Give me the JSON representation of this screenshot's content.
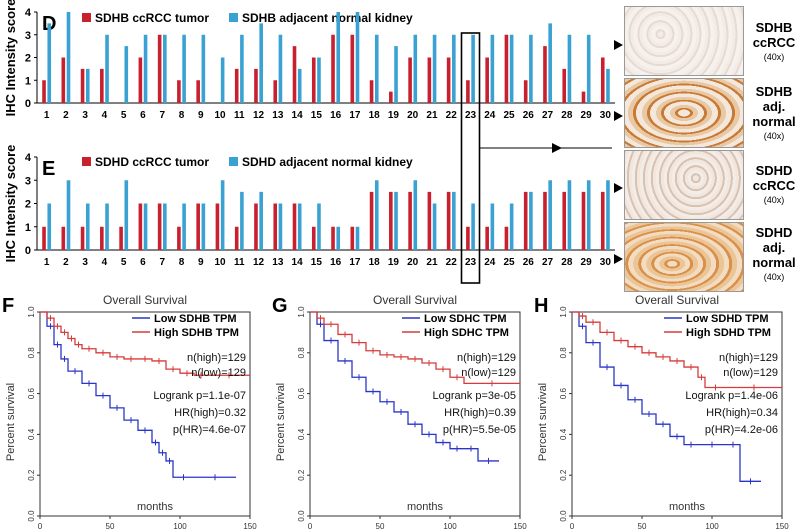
{
  "bar_panels": [
    {
      "letter": "D",
      "legend": [
        "SDHB ccRCC tumor",
        "SDHB adjacent normal kidney"
      ],
      "colors": [
        "#c8202e",
        "#3aa2d2"
      ],
      "tumor": [
        1,
        2,
        1.5,
        1.5,
        0,
        2,
        3,
        1,
        1,
        0,
        1.5,
        1.5,
        1,
        2.5,
        2,
        3,
        3,
        1,
        0.5,
        2,
        2,
        2,
        1,
        2,
        3,
        1,
        2.5,
        1.5,
        0.5,
        2
      ],
      "normal": [
        3.5,
        4,
        1.5,
        3,
        2.5,
        3,
        3,
        3,
        3,
        2,
        3,
        3.5,
        3,
        1.5,
        2,
        4,
        4,
        3,
        2.5,
        3,
        3,
        3,
        3,
        3,
        3,
        3,
        3.5,
        3,
        3,
        1.5
      ]
    },
    {
      "letter": "E",
      "legend": [
        "SDHD ccRCC tumor",
        "SDHD adjacent normal kidney"
      ],
      "colors": [
        "#c8202e",
        "#3aa2d2"
      ],
      "tumor": [
        1,
        1,
        1,
        1,
        1,
        2,
        2,
        1,
        2,
        2,
        1,
        2,
        2,
        2,
        1,
        1,
        1,
        2.5,
        2.5,
        2.5,
        2.5,
        2.5,
        1,
        1,
        1,
        2.5,
        2.5,
        2.5,
        2.5,
        2.5
      ],
      "normal": [
        2,
        3,
        2,
        2,
        3,
        2,
        2,
        2,
        2,
        3,
        2.5,
        2.5,
        2,
        2,
        2,
        1,
        1,
        3,
        2.5,
        3,
        2,
        2.5,
        2,
        2,
        2,
        2.5,
        3,
        3,
        3,
        3
      ]
    }
  ],
  "x_ticks": [
    "1",
    "2",
    "3",
    "4",
    "5",
    "6",
    "7",
    "8",
    "9",
    "10",
    "11",
    "12",
    "13",
    "14",
    "15",
    "16",
    "17",
    "18",
    "19",
    "20",
    "21",
    "22",
    "23",
    "24",
    "25",
    "26",
    "27",
    "28",
    "29",
    "30"
  ],
  "y_ticks": [
    "0",
    "1",
    "2",
    "3",
    "4"
  ],
  "y_axis_label": "IHC Intensity score",
  "highlight_case": "23",
  "ihc_panels": [
    {
      "gene": "SDHB",
      "tissue": "ccRCC",
      "mag": "(40x)"
    },
    {
      "gene": "SDHB",
      "tissue": "adj.",
      "tissue2": "normal",
      "mag": "(40x)"
    },
    {
      "gene": "SDHD",
      "tissue": "ccRCC",
      "mag": "(40x)"
    },
    {
      "gene": "SDHD",
      "tissue": "adj.",
      "tissue2": "normal",
      "mag": "(40x)"
    }
  ],
  "km_panels": [
    {
      "letter": "F",
      "title": "Overall Survival",
      "legend_low": "Low SDHB TPM",
      "legend_high": "High SDHB TPM",
      "gene": "SDHB",
      "n_high": "n(high)=129",
      "n_low": "n(low)=129",
      "logrank": "Logrank p=1.1e-07",
      "hr": "HR(high)=0.32",
      "phr": "p(HR)=4.6e-07",
      "ylabel": "Percent survival",
      "xlabel": "months",
      "yticks": [
        "0.0",
        "0.2",
        "0.4",
        "0.6",
        "0.8",
        "1.0"
      ],
      "xticks": [
        "0",
        "50",
        "100",
        "150"
      ],
      "high_curve": [
        [
          0,
          1.0
        ],
        [
          5,
          0.97
        ],
        [
          10,
          0.93
        ],
        [
          15,
          0.9
        ],
        [
          20,
          0.87
        ],
        [
          25,
          0.84
        ],
        [
          30,
          0.82
        ],
        [
          40,
          0.8
        ],
        [
          50,
          0.78
        ],
        [
          60,
          0.77
        ],
        [
          70,
          0.77
        ],
        [
          80,
          0.76
        ],
        [
          90,
          0.72
        ],
        [
          100,
          0.7
        ],
        [
          110,
          0.69
        ],
        [
          120,
          0.69
        ],
        [
          150,
          0.69
        ]
      ],
      "low_curve": [
        [
          0,
          1.0
        ],
        [
          5,
          0.93
        ],
        [
          10,
          0.84
        ],
        [
          15,
          0.77
        ],
        [
          20,
          0.71
        ],
        [
          30,
          0.65
        ],
        [
          40,
          0.59
        ],
        [
          50,
          0.53
        ],
        [
          60,
          0.47
        ],
        [
          70,
          0.42
        ],
        [
          80,
          0.36
        ],
        [
          85,
          0.31
        ],
        [
          90,
          0.27
        ],
        [
          95,
          0.19
        ],
        [
          110,
          0.19
        ],
        [
          140,
          0.19
        ]
      ]
    },
    {
      "letter": "G",
      "title": "Overall Survival",
      "legend_low": "Low SDHC TPM",
      "legend_high": "High SDHC TPM",
      "gene": "SDHC",
      "n_high": "n(high)=129",
      "n_low": "n(low)=129",
      "logrank": "Logrank p=3e-05",
      "hr": "HR(high)=0.39",
      "phr": "p(HR)=5.5e-05",
      "ylabel": "Percent survival",
      "xlabel": "months",
      "yticks": [
        "0.0",
        "0.2",
        "0.4",
        "0.6",
        "0.8",
        "1.0"
      ],
      "xticks": [
        "0",
        "50",
        "100",
        "150"
      ],
      "high_curve": [
        [
          0,
          1.0
        ],
        [
          5,
          0.97
        ],
        [
          10,
          0.94
        ],
        [
          20,
          0.89
        ],
        [
          30,
          0.85
        ],
        [
          40,
          0.81
        ],
        [
          50,
          0.79
        ],
        [
          60,
          0.78
        ],
        [
          70,
          0.77
        ],
        [
          80,
          0.75
        ],
        [
          90,
          0.72
        ],
        [
          100,
          0.68
        ],
        [
          110,
          0.65
        ],
        [
          150,
          0.65
        ]
      ],
      "low_curve": [
        [
          0,
          1.0
        ],
        [
          5,
          0.94
        ],
        [
          10,
          0.86
        ],
        [
          20,
          0.76
        ],
        [
          30,
          0.68
        ],
        [
          40,
          0.61
        ],
        [
          50,
          0.56
        ],
        [
          60,
          0.51
        ],
        [
          70,
          0.45
        ],
        [
          80,
          0.4
        ],
        [
          90,
          0.36
        ],
        [
          100,
          0.33
        ],
        [
          110,
          0.33
        ],
        [
          120,
          0.27
        ],
        [
          135,
          0.27
        ]
      ]
    },
    {
      "letter": "H",
      "title": "Overall Survival",
      "legend_low": "Low SDHD TPM",
      "legend_high": "High SDHD TPM",
      "gene": "SDHD",
      "n_high": "n(high)=129",
      "n_low": "n(low)=129",
      "logrank": "Logrank p=1.4e-06",
      "hr": "HR(high)=0.34",
      "phr": "p(HR)=4.2e-06",
      "ylabel": "Percent survival",
      "xlabel": "months",
      "yticks": [
        "0.0",
        "0.2",
        "0.4",
        "0.6",
        "0.8",
        "1.0"
      ],
      "xticks": [
        "0",
        "50",
        "100",
        "150"
      ],
      "high_curve": [
        [
          0,
          1.0
        ],
        [
          5,
          0.98
        ],
        [
          10,
          0.95
        ],
        [
          20,
          0.9
        ],
        [
          30,
          0.86
        ],
        [
          40,
          0.83
        ],
        [
          50,
          0.8
        ],
        [
          60,
          0.78
        ],
        [
          70,
          0.76
        ],
        [
          80,
          0.73
        ],
        [
          90,
          0.68
        ],
        [
          95,
          0.63
        ],
        [
          110,
          0.63
        ],
        [
          150,
          0.63
        ]
      ],
      "low_curve": [
        [
          0,
          1.0
        ],
        [
          5,
          0.93
        ],
        [
          10,
          0.85
        ],
        [
          20,
          0.73
        ],
        [
          30,
          0.64
        ],
        [
          40,
          0.57
        ],
        [
          50,
          0.5
        ],
        [
          60,
          0.45
        ],
        [
          70,
          0.39
        ],
        [
          80,
          0.35
        ],
        [
          90,
          0.35
        ],
        [
          110,
          0.35
        ],
        [
          120,
          0.17
        ],
        [
          135,
          0.17
        ]
      ]
    }
  ],
  "chart_data": [
    {
      "type": "bar",
      "title": "D",
      "categories": [
        "1",
        "2",
        "3",
        "4",
        "5",
        "6",
        "7",
        "8",
        "9",
        "10",
        "11",
        "12",
        "13",
        "14",
        "15",
        "16",
        "17",
        "18",
        "19",
        "20",
        "21",
        "22",
        "23",
        "24",
        "25",
        "26",
        "27",
        "28",
        "29",
        "30"
      ],
      "series": [
        {
          "name": "SDHB ccRCC tumor",
          "values": [
            1,
            2,
            1.5,
            1.5,
            0,
            2,
            3,
            1,
            1,
            0,
            1.5,
            1.5,
            1,
            2.5,
            2,
            3,
            3,
            1,
            0.5,
            2,
            2,
            2,
            1,
            2,
            3,
            1,
            2.5,
            1.5,
            0.5,
            2
          ]
        },
        {
          "name": "SDHB adjacent normal kidney",
          "values": [
            3.5,
            4,
            1.5,
            3,
            2.5,
            3,
            3,
            3,
            3,
            2,
            3,
            3.5,
            3,
            1.5,
            2,
            4,
            4,
            3,
            2.5,
            3,
            3,
            3,
            3,
            3,
            3,
            3,
            3.5,
            3,
            3,
            1.5
          ]
        }
      ],
      "ylabel": "IHC Intensity score",
      "ylim": [
        0,
        4
      ]
    },
    {
      "type": "bar",
      "title": "E",
      "categories": [
        "1",
        "2",
        "3",
        "4",
        "5",
        "6",
        "7",
        "8",
        "9",
        "10",
        "11",
        "12",
        "13",
        "14",
        "15",
        "16",
        "17",
        "18",
        "19",
        "20",
        "21",
        "22",
        "23",
        "24",
        "25",
        "26",
        "27",
        "28",
        "29",
        "30"
      ],
      "series": [
        {
          "name": "SDHD ccRCC tumor",
          "values": [
            1,
            1,
            1,
            1,
            1,
            2,
            2,
            1,
            2,
            2,
            1,
            2,
            2,
            2,
            1,
            1,
            1,
            2.5,
            2.5,
            2.5,
            2.5,
            2.5,
            1,
            1,
            1,
            2.5,
            2.5,
            2.5,
            2.5,
            2.5
          ]
        },
        {
          "name": "SDHD adjacent normal kidney",
          "values": [
            2,
            3,
            2,
            2,
            3,
            2,
            2,
            2,
            2,
            3,
            2.5,
            2.5,
            2,
            2,
            2,
            1,
            1,
            3,
            2.5,
            3,
            2,
            2.5,
            2,
            2,
            2,
            2.5,
            3,
            3,
            3,
            3
          ]
        }
      ],
      "ylabel": "IHC Intensity score",
      "ylim": [
        0,
        4
      ]
    },
    {
      "type": "line",
      "title": "Overall Survival (F, SDHB)",
      "series": [
        {
          "name": "Low SDHB TPM"
        },
        {
          "name": "High SDHB TPM"
        }
      ],
      "xlabel": "months",
      "ylabel": "Percent survival",
      "xlim": [
        0,
        150
      ],
      "ylim": [
        0,
        1
      ]
    },
    {
      "type": "line",
      "title": "Overall Survival (G, SDHC)",
      "series": [
        {
          "name": "Low SDHC TPM"
        },
        {
          "name": "High SDHC TPM"
        }
      ],
      "xlabel": "months",
      "ylabel": "Percent survival",
      "xlim": [
        0,
        150
      ],
      "ylim": [
        0,
        1
      ]
    },
    {
      "type": "line",
      "title": "Overall Survival (H, SDHD)",
      "series": [
        {
          "name": "Low SDHD TPM"
        },
        {
          "name": "High SDHD TPM"
        }
      ],
      "xlabel": "months",
      "ylabel": "Percent survival",
      "xlim": [
        0,
        150
      ],
      "ylim": [
        0,
        1
      ]
    }
  ]
}
